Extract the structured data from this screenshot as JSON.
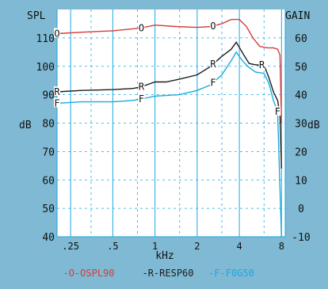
{
  "chart_data": {
    "type": "line",
    "left_axis": {
      "label": "SPL",
      "range": [
        40,
        120
      ],
      "ticks": [
        40,
        50,
        60,
        70,
        80,
        90,
        100,
        110
      ]
    },
    "right_axis": {
      "label": "GAIN",
      "range": [
        -10,
        70
      ],
      "ticks": [
        -10,
        0,
        10,
        20,
        30,
        40,
        50,
        60
      ]
    },
    "side_unit_left": "dB",
    "side_unit_right": "dB",
    "x_axis": {
      "label": "kHz",
      "scale": "log",
      "range_khz": [
        0.2,
        8.5
      ],
      "ticks": [
        {
          "khz": 0.25,
          "label": ".25"
        },
        {
          "khz": 0.5,
          "label": ".5"
        },
        {
          "khz": 1,
          "label": "1"
        },
        {
          "khz": 2,
          "label": "2"
        },
        {
          "khz": 4,
          "label": "4"
        },
        {
          "khz": 8,
          "label": "8"
        }
      ]
    },
    "grid": true,
    "legend_position": "bottom",
    "series": [
      {
        "name": "-O-OSPL90",
        "axis": "left",
        "color": "#d63b3b",
        "marker": "O",
        "marker_khz": [
          0.2,
          0.8,
          2.6
        ],
        "points": [
          [
            0.2,
            111.5
          ],
          [
            0.3,
            112
          ],
          [
            0.5,
            112.5
          ],
          [
            0.8,
            113.5
          ],
          [
            1.0,
            114.5
          ],
          [
            1.4,
            114
          ],
          [
            2.0,
            113.7
          ],
          [
            2.5,
            114
          ],
          [
            3.0,
            115
          ],
          [
            3.5,
            116.5
          ],
          [
            4.0,
            116.5
          ],
          [
            4.5,
            114
          ],
          [
            5.0,
            110
          ],
          [
            5.6,
            107
          ],
          [
            6.3,
            106.5
          ],
          [
            7.0,
            106.5
          ],
          [
            7.5,
            106
          ],
          [
            7.8,
            104
          ],
          [
            8.0,
            80
          ]
        ]
      },
      {
        "name": "-R-RESP60",
        "axis": "left",
        "color": "#1e1e1e",
        "marker": "R",
        "marker_khz": [
          0.2,
          0.8,
          2.6,
          5.8
        ],
        "points": [
          [
            0.2,
            91
          ],
          [
            0.3,
            91.5
          ],
          [
            0.5,
            91.8
          ],
          [
            0.7,
            92.2
          ],
          [
            0.8,
            92.8
          ],
          [
            1.0,
            94.5
          ],
          [
            1.2,
            94.5
          ],
          [
            1.5,
            95.5
          ],
          [
            2.0,
            97
          ],
          [
            2.5,
            100
          ],
          [
            3.0,
            103.5
          ],
          [
            3.5,
            106
          ],
          [
            3.8,
            108.5
          ],
          [
            4.3,
            104
          ],
          [
            4.7,
            101
          ],
          [
            5.3,
            100.5
          ],
          [
            6.0,
            100.5
          ],
          [
            6.5,
            96
          ],
          [
            7.0,
            91
          ],
          [
            7.5,
            88
          ],
          [
            7.8,
            83
          ],
          [
            8.0,
            64
          ]
        ]
      },
      {
        "name": "-F-F0G50",
        "axis": "left",
        "color": "#1aaae0",
        "marker": "F",
        "marker_khz": [
          0.2,
          0.8,
          2.6,
          7.5
        ],
        "points": [
          [
            0.2,
            87
          ],
          [
            0.3,
            87.5
          ],
          [
            0.5,
            87.5
          ],
          [
            0.7,
            88
          ],
          [
            0.8,
            88.5
          ],
          [
            1.0,
            89.5
          ],
          [
            1.5,
            90
          ],
          [
            2.0,
            91.5
          ],
          [
            2.5,
            93.5
          ],
          [
            3.0,
            97
          ],
          [
            3.5,
            102
          ],
          [
            3.8,
            105
          ],
          [
            4.2,
            102
          ],
          [
            4.6,
            100
          ],
          [
            5.2,
            98
          ],
          [
            6.0,
            97.5
          ],
          [
            6.5,
            94
          ],
          [
            7.0,
            88
          ],
          [
            7.5,
            84
          ],
          [
            8.0,
            40
          ]
        ]
      }
    ]
  }
}
